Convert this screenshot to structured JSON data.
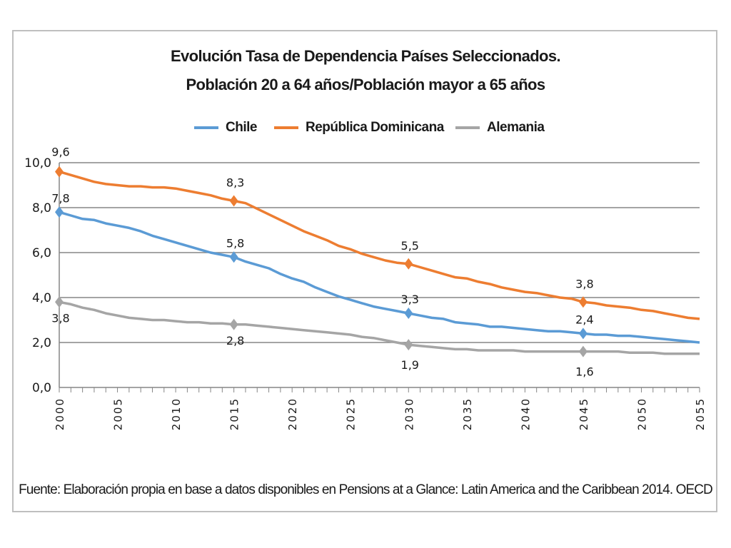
{
  "chart_data": {
    "type": "line",
    "title": "Evolución Tasa de Dependencia Países Seleccionados.",
    "subtitle": "Población 20 a 64 años/Población mayor a 65 años",
    "xlabel": "",
    "ylabel": "",
    "ylim": [
      0,
      10
    ],
    "yticks": [
      "0,0",
      "2,0",
      "4,0",
      "6,0",
      "8,0",
      "10,0"
    ],
    "xlim": [
      2000,
      2055
    ],
    "xticks": [
      "2000",
      "2005",
      "2010",
      "2015",
      "2020",
      "2025",
      "2030",
      "2035",
      "2040",
      "2045",
      "2050",
      "2055"
    ],
    "grid": true,
    "legend": "top",
    "x": [
      2000,
      2001,
      2002,
      2003,
      2004,
      2005,
      2006,
      2007,
      2008,
      2009,
      2010,
      2011,
      2012,
      2013,
      2014,
      2015,
      2016,
      2017,
      2018,
      2019,
      2020,
      2021,
      2022,
      2023,
      2024,
      2025,
      2026,
      2027,
      2028,
      2029,
      2030,
      2031,
      2032,
      2033,
      2034,
      2035,
      2036,
      2037,
      2038,
      2039,
      2040,
      2041,
      2042,
      2043,
      2044,
      2045,
      2046,
      2047,
      2048,
      2049,
      2050,
      2051,
      2052,
      2053,
      2054,
      2055
    ],
    "series": [
      {
        "name": "Chile",
        "color": "#5b9bd5",
        "values": [
          7.8,
          7.65,
          7.5,
          7.45,
          7.3,
          7.2,
          7.1,
          6.95,
          6.75,
          6.6,
          6.45,
          6.3,
          6.15,
          6.0,
          5.9,
          5.8,
          5.6,
          5.45,
          5.3,
          5.05,
          4.85,
          4.7,
          4.45,
          4.25,
          4.05,
          3.9,
          3.75,
          3.6,
          3.5,
          3.4,
          3.3,
          3.2,
          3.1,
          3.05,
          2.9,
          2.85,
          2.8,
          2.7,
          2.7,
          2.65,
          2.6,
          2.55,
          2.5,
          2.5,
          2.45,
          2.4,
          2.35,
          2.35,
          2.3,
          2.3,
          2.25,
          2.2,
          2.15,
          2.1,
          2.05,
          2.0
        ],
        "markers": [
          {
            "x": 2000,
            "label": "7,8"
          },
          {
            "x": 2015,
            "label": "5,8"
          },
          {
            "x": 2030,
            "label": "3,3"
          },
          {
            "x": 2045,
            "label": "2,4"
          }
        ]
      },
      {
        "name": "República Dominicana",
        "color": "#ed7d31",
        "values": [
          9.6,
          9.45,
          9.3,
          9.15,
          9.05,
          9.0,
          8.95,
          8.95,
          8.9,
          8.9,
          8.85,
          8.75,
          8.65,
          8.55,
          8.4,
          8.3,
          8.2,
          7.95,
          7.7,
          7.45,
          7.2,
          6.95,
          6.75,
          6.55,
          6.3,
          6.15,
          5.95,
          5.8,
          5.65,
          5.55,
          5.5,
          5.35,
          5.2,
          5.05,
          4.9,
          4.85,
          4.7,
          4.6,
          4.45,
          4.35,
          4.25,
          4.2,
          4.1,
          4.0,
          3.95,
          3.8,
          3.75,
          3.65,
          3.6,
          3.55,
          3.45,
          3.4,
          3.3,
          3.2,
          3.1,
          3.05
        ],
        "markers": [
          {
            "x": 2000,
            "label": "9,6"
          },
          {
            "x": 2015,
            "label": "8,3"
          },
          {
            "x": 2030,
            "label": "5,5"
          },
          {
            "x": 2045,
            "label": "3,8"
          }
        ]
      },
      {
        "name": "Alemania",
        "color": "#a5a5a5",
        "values": [
          3.8,
          3.7,
          3.55,
          3.45,
          3.3,
          3.2,
          3.1,
          3.05,
          3.0,
          3.0,
          2.95,
          2.9,
          2.9,
          2.85,
          2.85,
          2.8,
          2.8,
          2.75,
          2.7,
          2.65,
          2.6,
          2.55,
          2.5,
          2.45,
          2.4,
          2.35,
          2.25,
          2.2,
          2.1,
          2.0,
          1.9,
          1.85,
          1.8,
          1.75,
          1.7,
          1.7,
          1.65,
          1.65,
          1.65,
          1.65,
          1.6,
          1.6,
          1.6,
          1.6,
          1.6,
          1.6,
          1.6,
          1.6,
          1.6,
          1.55,
          1.55,
          1.55,
          1.5,
          1.5,
          1.5,
          1.5
        ],
        "markers": [
          {
            "x": 2000,
            "label": "3,8"
          },
          {
            "x": 2015,
            "label": "2,8"
          },
          {
            "x": 2030,
            "label": "1,9"
          },
          {
            "x": 2045,
            "label": "1,6"
          }
        ]
      }
    ],
    "source": "Fuente: Elaboración propia en base a datos disponibles en Pensions at a Glance: Latin America and the Caribbean 2014. OECD"
  }
}
